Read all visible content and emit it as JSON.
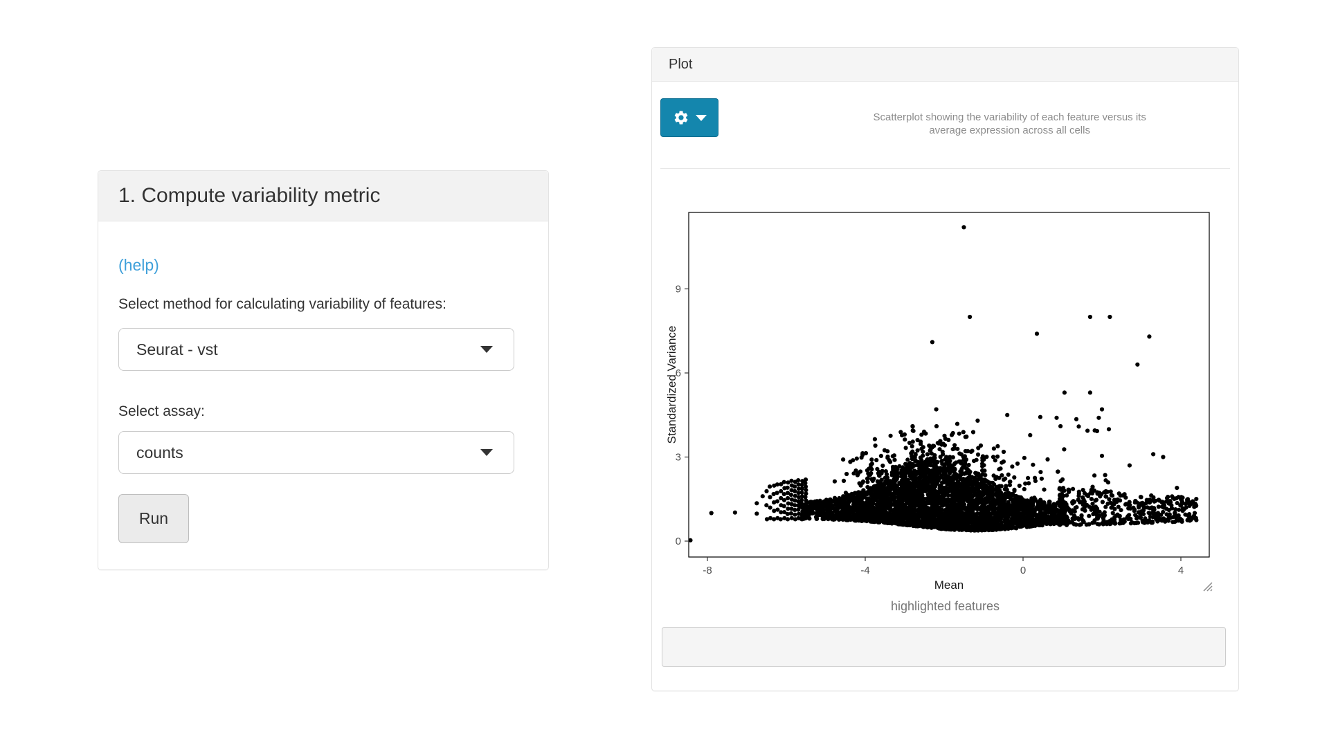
{
  "page": {
    "background": "#ffffff"
  },
  "left_panel": {
    "title": "1. Compute variability metric",
    "help_link": "(help)",
    "method_label": "Select method for calculating variability of features:",
    "method_value": "Seurat - vst",
    "assay_label": "Select assay:",
    "assay_value": "counts",
    "run_label": "Run"
  },
  "right_panel": {
    "title": "Plot",
    "options_button": {
      "icon": "gear",
      "caret": "caret-down",
      "color": "#1486ad"
    },
    "caption_line1": "Scatterplot showing the variability of each feature versus its",
    "caption_line2": "average expression across all cells",
    "highlighted_label": "highlighted features",
    "highlighted_value": "",
    "highlighted_placeholder": ""
  },
  "colors": {
    "accent_blue": "#1486ad",
    "link_blue": "#3fa0da",
    "panel_border": "#e3e3e3",
    "heading_bg": "#f2f2f2",
    "point_color": "#000000",
    "tick_text": "#4d4d4d",
    "axis_title": "#1a1a1a"
  },
  "chart_data": {
    "type": "scatter",
    "title": "",
    "xlabel": "Mean",
    "ylabel": "Standardized Variance",
    "xlim": [
      -8.47,
      4.72
    ],
    "ylim": [
      -0.57,
      11.73
    ],
    "x_ticks": [
      -8,
      -4,
      0,
      4
    ],
    "y_ticks": [
      0,
      3,
      6,
      9
    ],
    "grid": false,
    "legend": "none",
    "point_radius": 3.1,
    "outliers": [
      [
        -1.5,
        11.2
      ],
      [
        -1.35,
        8.0
      ],
      [
        1.7,
        8.0
      ],
      [
        2.2,
        8.0
      ],
      [
        3.2,
        7.3
      ],
      [
        0.35,
        7.4
      ],
      [
        2.9,
        6.3
      ],
      [
        -2.3,
        7.1
      ],
      [
        1.05,
        5.3
      ],
      [
        1.7,
        5.3
      ],
      [
        2.0,
        4.7
      ],
      [
        -0.4,
        4.5
      ],
      [
        -1.15,
        4.3
      ],
      [
        0.85,
        4.4
      ],
      [
        1.35,
        4.35
      ],
      [
        0.95,
        4.1
      ],
      [
        -2.8,
        4.1
      ],
      [
        -2.2,
        4.7
      ],
      [
        2.7,
        2.7
      ],
      [
        3.3,
        3.1
      ],
      [
        1.0,
        2.2
      ],
      [
        3.9,
        1.9
      ],
      [
        4.2,
        1.4
      ],
      [
        4.35,
        1.0
      ],
      [
        3.55,
        3.0
      ]
    ],
    "singles": [
      [
        -8.43,
        0.03
      ],
      [
        -7.9,
        1.0
      ],
      [
        -7.3,
        1.02
      ],
      [
        -6.75,
        1.35
      ],
      [
        -6.75,
        0.98
      ],
      [
        -6.6,
        1.6
      ]
    ],
    "generator": {
      "seed": 12345,
      "columns": {
        "x_start": -6.5,
        "x_step": 0.09,
        "count": 12,
        "y_base": 0.78,
        "y_span": 1.5
      },
      "dense": {
        "n": 3400,
        "x_min": -5.65,
        "x_max": 1.1,
        "x_mean": -2.1,
        "x_sd": 1.7,
        "bottom_base": 0.8,
        "dip_depth": 0.42,
        "dip_center": -1.2,
        "dip_sigma": 1.6,
        "top_base": 1.35,
        "hump_height": 1.15,
        "hump_center": -2.3,
        "hump_sigma": 1.3,
        "pow": 1.35
      },
      "hump": {
        "n": 430,
        "x_center": -2.2,
        "x_sd": 1.15,
        "x_min": -4.9,
        "x_max": 0.9,
        "decay": 0.5,
        "max_extra": 1.7
      },
      "right": {
        "n": 430,
        "x_min": 0.9,
        "x_max": 4.4,
        "xpow": 1.4,
        "bottom": 0.55,
        "bottom_slope": 0.045,
        "top": 1.95,
        "top_slope": -0.12,
        "ypow": 1.3
      },
      "mid": {
        "n": 32,
        "x_min": -3.6,
        "x_max": 2.2,
        "y_min": 1.9,
        "y_max": 4.45
      }
    }
  }
}
